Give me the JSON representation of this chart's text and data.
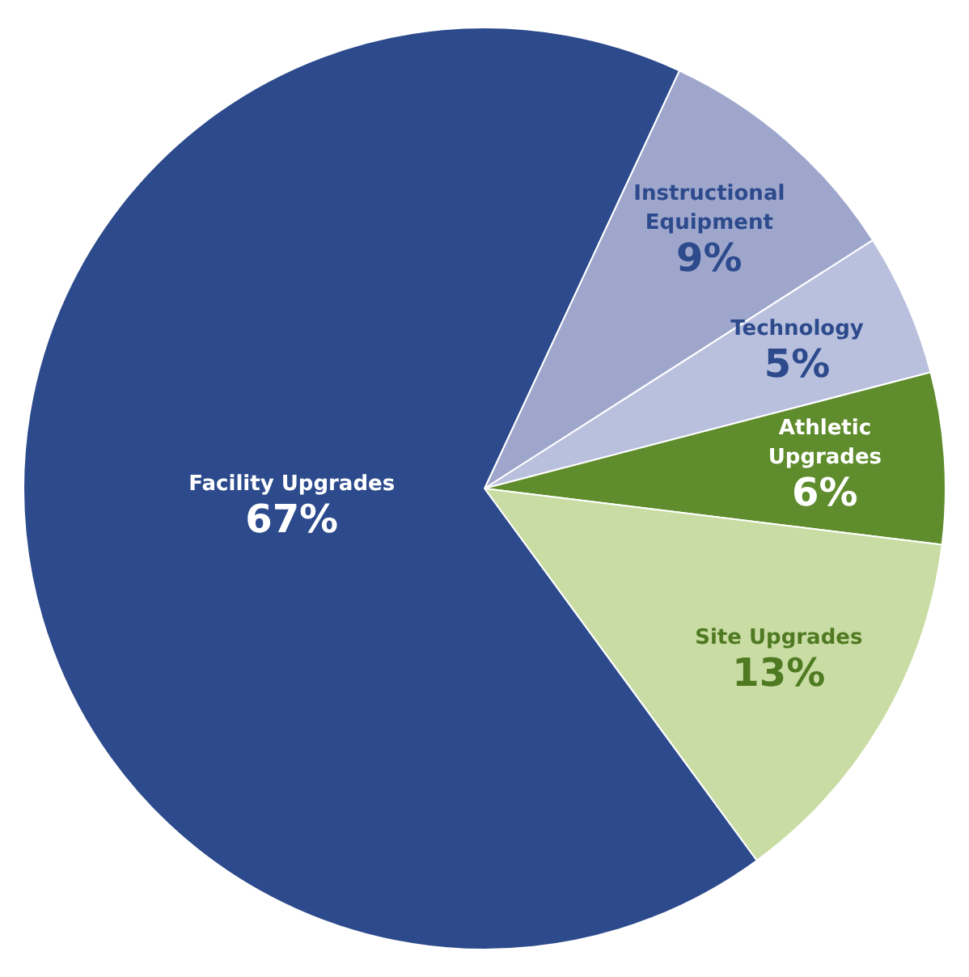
{
  "chart_data": {
    "type": "pie",
    "categories": [
      "Instructional Equipment",
      "Technology",
      "Athletic Upgrades",
      "Site Upgrades",
      "Facility Upgrades"
    ],
    "values": [
      9,
      5,
      6,
      13,
      67
    ],
    "value_labels": [
      "9%",
      "5%",
      "6%",
      "13%",
      "67%"
    ],
    "colors": [
      "#9ea6cc",
      "#b9c0dd",
      "#5f8c2c",
      "#c9dca3",
      "#2c4a8c"
    ]
  }
}
